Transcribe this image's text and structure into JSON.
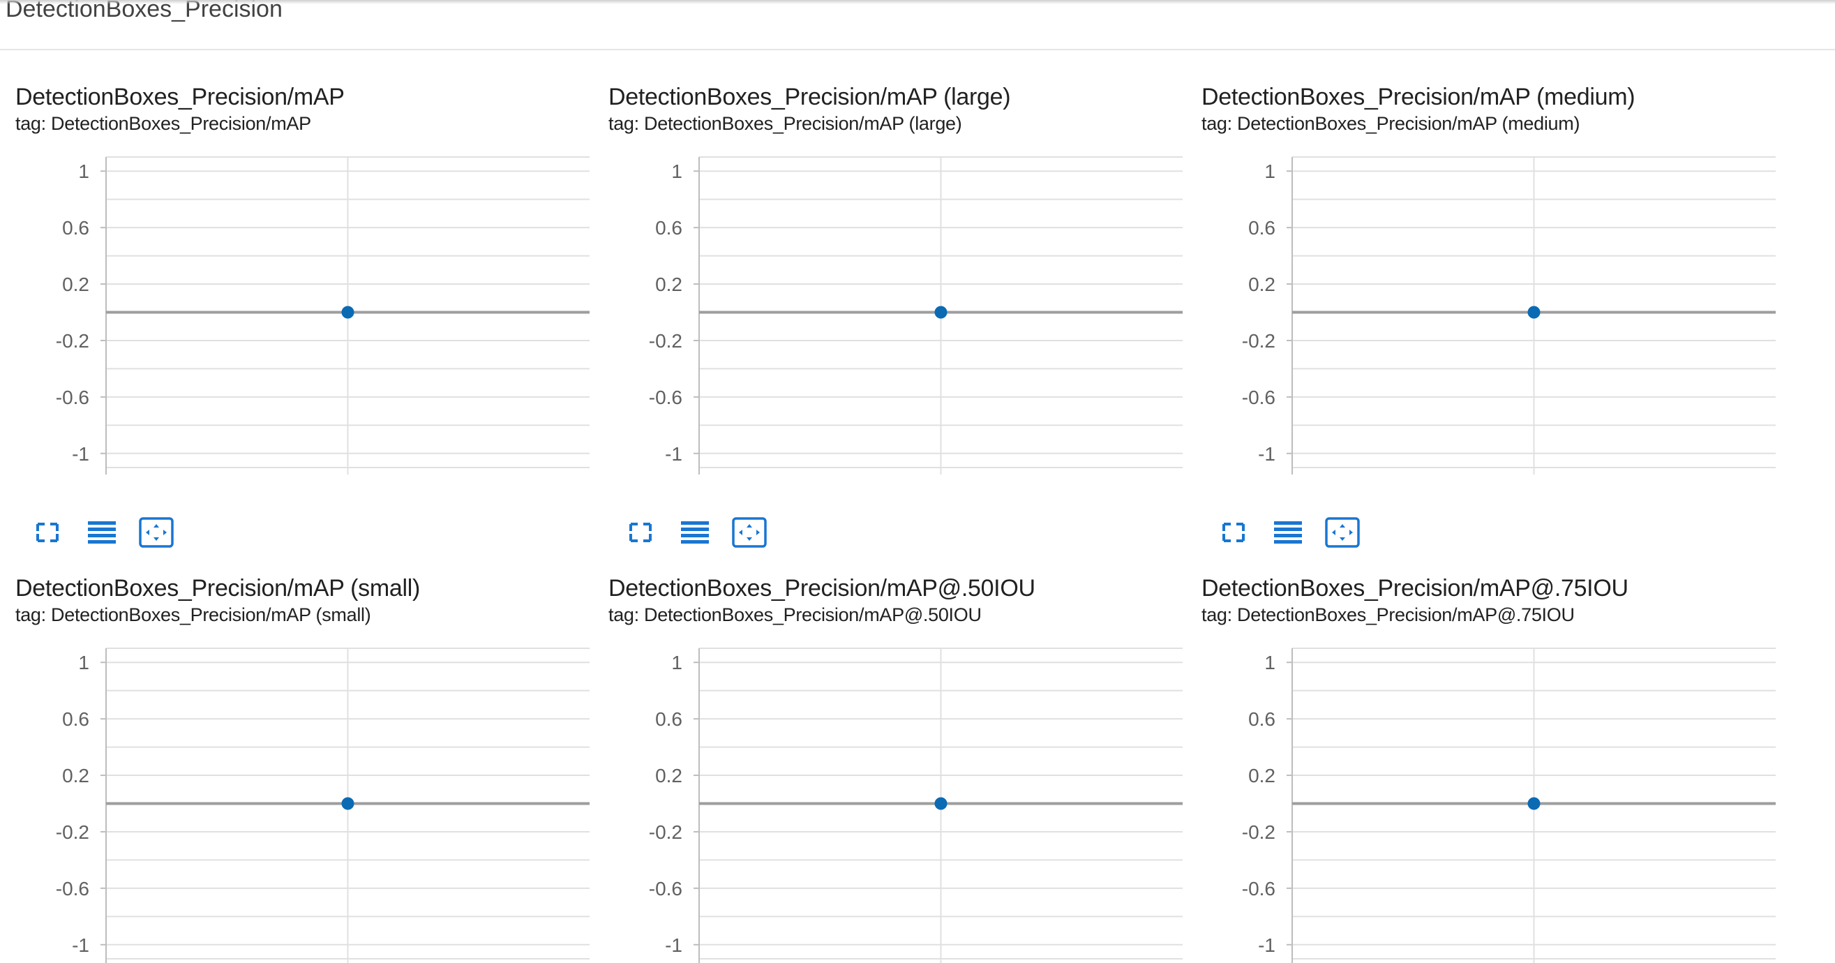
{
  "section": {
    "title": "DetectionBoxes_Precision"
  },
  "cards": [
    {
      "title": "DetectionBoxes_Precision/mAP",
      "tag": "tag: DetectionBoxes_Precision/mAP",
      "chart_data": {
        "type": "scatter",
        "title": "DetectionBoxes_Precision/mAP",
        "ylim": [
          -1.1,
          1.1
        ],
        "yticks": [
          "1",
          "0.6",
          "0.2",
          "-0.2",
          "-0.6",
          "-1"
        ],
        "grid": true,
        "series": [
          {
            "points": [
              {
                "x": 0,
                "y": 0
              }
            ]
          }
        ]
      }
    },
    {
      "title": "DetectionBoxes_Precision/mAP (large)",
      "tag": "tag: DetectionBoxes_Precision/mAP (large)",
      "chart_data": {
        "type": "scatter",
        "title": "DetectionBoxes_Precision/mAP (large)",
        "ylim": [
          -1.1,
          1.1
        ],
        "yticks": [
          "1",
          "0.6",
          "0.2",
          "-0.2",
          "-0.6",
          "-1"
        ],
        "grid": true,
        "series": [
          {
            "points": [
              {
                "x": 0,
                "y": 0
              }
            ]
          }
        ]
      }
    },
    {
      "title": "DetectionBoxes_Precision/mAP (medium)",
      "tag": "tag: DetectionBoxes_Precision/mAP (medium)",
      "chart_data": {
        "type": "scatter",
        "title": "DetectionBoxes_Precision/mAP (medium)",
        "ylim": [
          -1.1,
          1.1
        ],
        "yticks": [
          "1",
          "0.6",
          "0.2",
          "-0.2",
          "-0.6",
          "-1"
        ],
        "grid": true,
        "series": [
          {
            "points": [
              {
                "x": 0,
                "y": 0
              }
            ]
          }
        ]
      }
    },
    {
      "title": "DetectionBoxes_Precision/mAP (small)",
      "tag": "tag: DetectionBoxes_Precision/mAP (small)",
      "chart_data": {
        "type": "scatter",
        "title": "DetectionBoxes_Precision/mAP (small)",
        "ylim": [
          -1.1,
          1.1
        ],
        "yticks": [
          "1",
          "0.6",
          "0.2",
          "-0.2",
          "-0.6",
          "-1"
        ],
        "grid": true,
        "series": [
          {
            "points": [
              {
                "x": 0,
                "y": 0
              }
            ]
          }
        ]
      }
    },
    {
      "title": "DetectionBoxes_Precision/mAP@.50IOU",
      "tag": "tag: DetectionBoxes_Precision/mAP@.50IOU",
      "chart_data": {
        "type": "scatter",
        "title": "DetectionBoxes_Precision/mAP@.50IOU",
        "ylim": [
          -1.1,
          1.1
        ],
        "yticks": [
          "1",
          "0.6",
          "0.2",
          "-0.2",
          "-0.6",
          "-1"
        ],
        "grid": true,
        "series": [
          {
            "points": [
              {
                "x": 0,
                "y": 0
              }
            ]
          }
        ]
      }
    },
    {
      "title": "DetectionBoxes_Precision/mAP@.75IOU",
      "tag": "tag: DetectionBoxes_Precision/mAP@.75IOU",
      "chart_data": {
        "type": "scatter",
        "title": "DetectionBoxes_Precision/mAP@.75IOU",
        "ylim": [
          -1.1,
          1.1
        ],
        "yticks": [
          "1",
          "0.6",
          "0.2",
          "-0.2",
          "-0.6",
          "-1"
        ],
        "grid": true,
        "series": [
          {
            "points": [
              {
                "x": 0,
                "y": 0
              }
            ]
          }
        ]
      }
    }
  ],
  "toolbar": {
    "icons": [
      "fullscreen-icon",
      "toggle-log-scale-icon",
      "fit-domain-icon"
    ]
  },
  "colors": {
    "accent": "#1976d2",
    "point": "#0b6ab4",
    "zero_line": "#9e9e9e",
    "grid": "#e0e0e0",
    "tick_text": "#616161"
  }
}
